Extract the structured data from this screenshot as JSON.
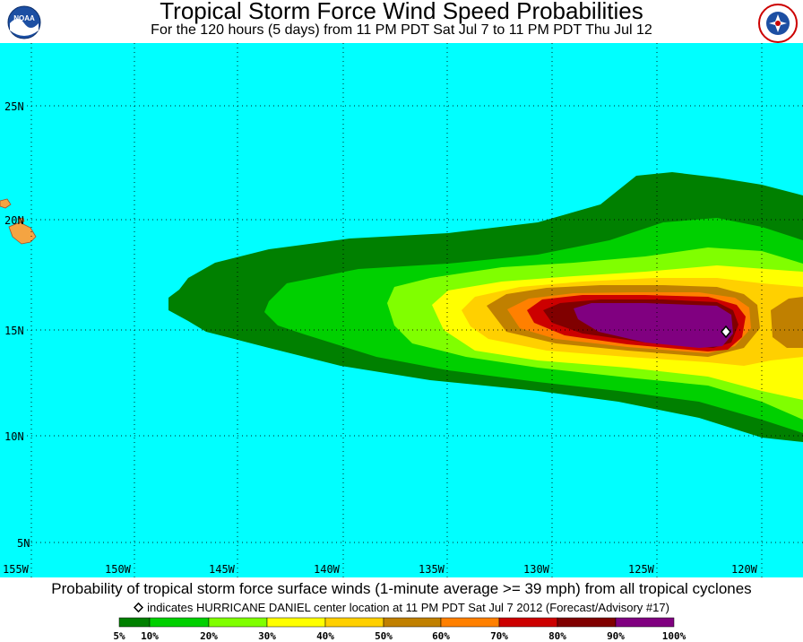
{
  "header": {
    "title": "Tropical Storm Force Wind Speed Probabilities",
    "subtitle": "For the 120 hours (5 days) from 11 PM PDT Sat Jul 7 to 11 PM PDT Thu Jul 12",
    "logo_left": "NOAA",
    "logo_right": "National Weather Service"
  },
  "map": {
    "ocean_color": "#00ffff",
    "land_color": "#f4a442",
    "lat_labels": [
      "25N",
      "20N",
      "15N",
      "10N",
      "5N"
    ],
    "lon_labels": [
      "155W",
      "150W",
      "145W",
      "140W",
      "135W",
      "130W",
      "125W",
      "120W"
    ],
    "storm_marker": "diamond-icon"
  },
  "footer": {
    "caption": "Probability of tropical storm force surface winds (1-minute average >= 39 mph) from all tropical cyclones",
    "note": "indicates HURRICANE DANIEL center location at 11 PM PDT Sat Jul 7 2012 (Forecast/Advisory #17)"
  },
  "legend": {
    "colors": [
      "#008000",
      "#00d000",
      "#80ff00",
      "#ffff00",
      "#ffd000",
      "#c08000",
      "#ff8000",
      "#cc0000",
      "#800000",
      "#800080"
    ],
    "labels": [
      "5%",
      "10%",
      "20%",
      "30%",
      "40%",
      "50%",
      "60%",
      "70%",
      "80%",
      "90%",
      "100%"
    ]
  }
}
